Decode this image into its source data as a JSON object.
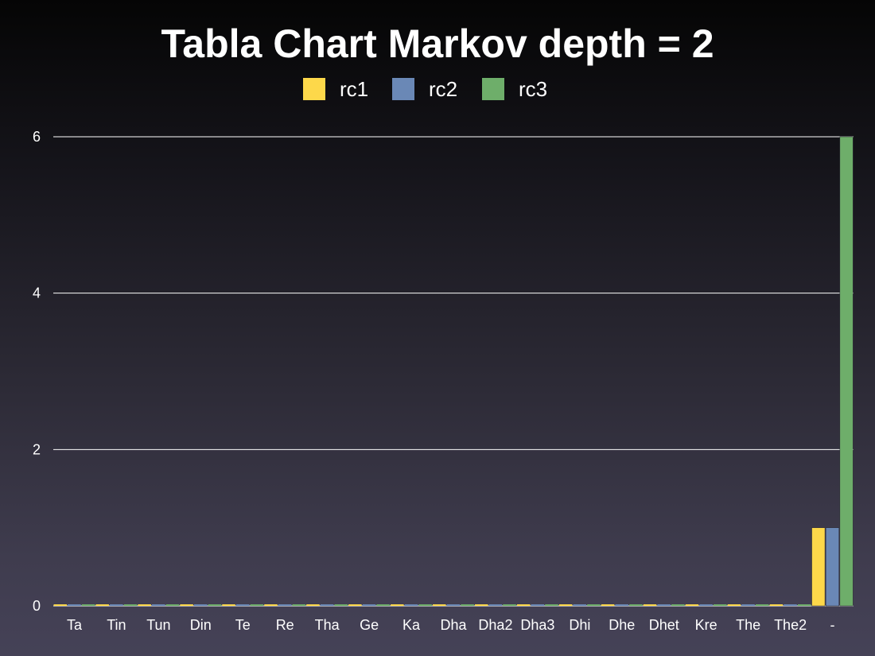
{
  "chart_data": {
    "type": "bar",
    "title": "Tabla Chart Markov depth = 2",
    "categories": [
      "Ta",
      "Tin",
      "Tun",
      "Din",
      "Te",
      "Re",
      "Tha",
      "Ge",
      "Ka",
      "Dha",
      "Dha2",
      "Dha3",
      "Dhi",
      "Dhe",
      "Dhet",
      "Kre",
      "The",
      "The2",
      "-"
    ],
    "series": [
      {
        "name": "rc1",
        "color": "#fdd84a",
        "values": [
          0,
          0,
          0,
          0,
          0,
          0,
          0,
          0,
          0,
          0,
          0,
          0,
          0,
          0,
          0,
          0,
          0,
          0,
          1
        ]
      },
      {
        "name": "rc2",
        "color": "#6a88b6",
        "values": [
          0,
          0,
          0,
          0,
          0,
          0,
          0,
          0,
          0,
          0,
          0,
          0,
          0,
          0,
          0,
          0,
          0,
          0,
          1
        ]
      },
      {
        "name": "rc3",
        "color": "#6eae6a",
        "values": [
          0,
          0,
          0,
          0,
          0,
          0,
          0,
          0,
          0,
          0,
          0,
          0,
          0,
          0,
          0,
          0,
          0,
          0,
          6
        ]
      }
    ],
    "ylim": [
      0,
      6
    ],
    "yticks": [
      0,
      2,
      4,
      6
    ],
    "xlabel": "",
    "ylabel": "",
    "grid": true,
    "legend_position": "top-center"
  }
}
